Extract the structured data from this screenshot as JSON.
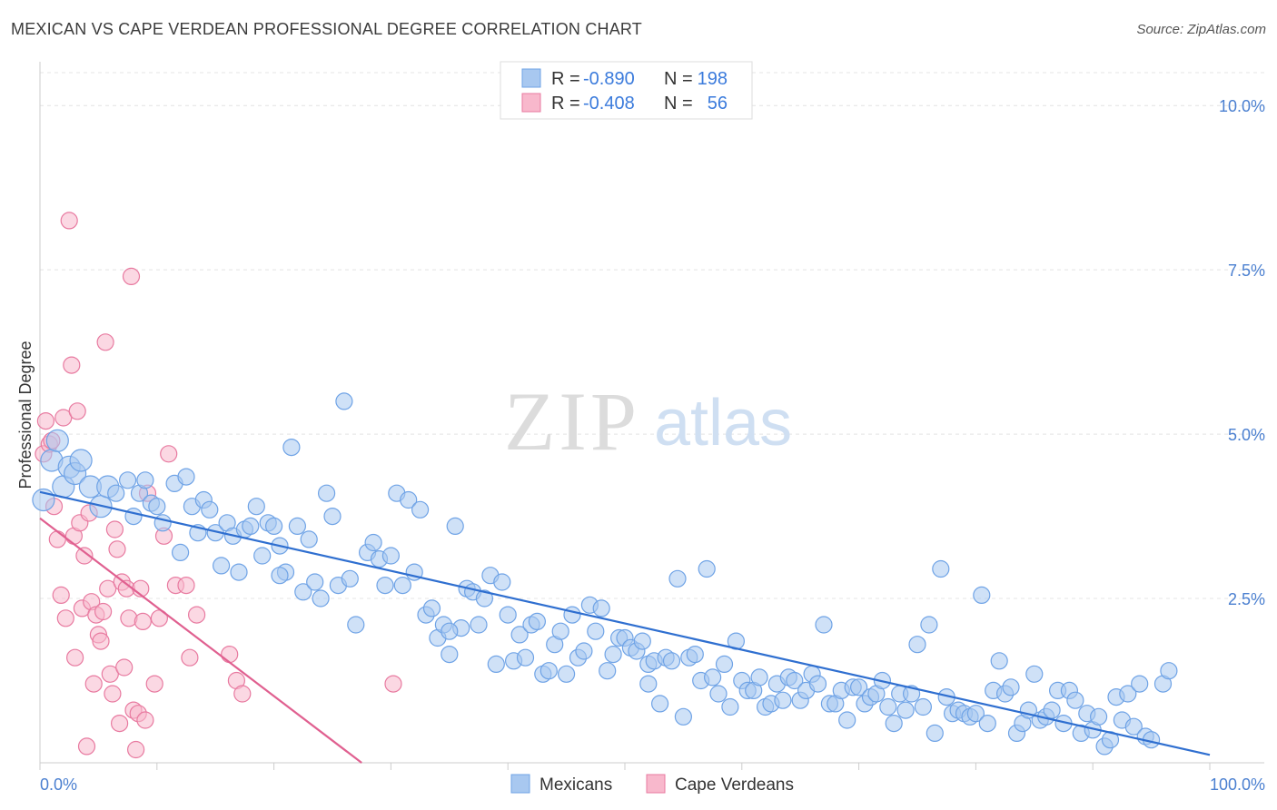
{
  "title": "MEXICAN VS CAPE VERDEAN PROFESSIONAL DEGREE CORRELATION CHART",
  "source": "Source: ZipAtlas.com",
  "watermark": {
    "zip": "ZIP",
    "atlas": "atlas"
  },
  "legend_top": [
    {
      "r_label": "R =",
      "r_value": "-0.890",
      "n_label": "N =",
      "n_value": "198",
      "color": "#a8c8f0"
    },
    {
      "r_label": "R =",
      "r_value": "-0.408",
      "n_label": "N =",
      "n_value": "56",
      "color": "#f8b8cc"
    }
  ],
  "chart_data": {
    "type": "scatter",
    "title": "MEXICAN VS CAPE VERDEAN PROFESSIONAL DEGREE CORRELATION CHART",
    "xlabel": "",
    "ylabel": "Professional Degree",
    "xlim": [
      0,
      100
    ],
    "ylim": [
      0,
      10.5
    ],
    "x_tick_labels": [
      "0.0%",
      "100.0%"
    ],
    "y_ticks": [
      2.5,
      5.0,
      7.5,
      10.0
    ],
    "y_tick_labels": [
      "2.5%",
      "5.0%",
      "7.5%",
      "10.0%"
    ],
    "grid": true,
    "legend_position": "top-center",
    "series": [
      {
        "name": "Mexicans",
        "color": "#6fa3e6",
        "fill": "#a8c8f0",
        "trend": {
          "x": [
            0,
            100
          ],
          "y": [
            4.12,
            0.12
          ]
        },
        "points": [
          [
            0.3,
            4.0
          ],
          [
            1,
            4.6
          ],
          [
            1.5,
            4.9
          ],
          [
            2,
            4.2
          ],
          [
            2.5,
            4.5
          ],
          [
            3,
            4.4
          ],
          [
            3.5,
            4.6
          ],
          [
            4.3,
            4.2
          ],
          [
            5.2,
            3.9
          ],
          [
            5.8,
            4.2
          ],
          [
            6.5,
            4.1
          ],
          [
            7.5,
            4.3
          ],
          [
            8,
            3.75
          ],
          [
            8.5,
            4.1
          ],
          [
            9,
            4.3
          ],
          [
            9.5,
            3.95
          ],
          [
            10,
            3.9
          ],
          [
            10.5,
            3.65
          ],
          [
            11.5,
            4.25
          ],
          [
            12,
            3.2
          ],
          [
            12.5,
            4.35
          ],
          [
            13,
            3.9
          ],
          [
            13.5,
            3.5
          ],
          [
            14,
            4.0
          ],
          [
            14.5,
            3.85
          ],
          [
            15,
            3.5
          ],
          [
            15.5,
            3.0
          ],
          [
            16,
            3.65
          ],
          [
            16.5,
            3.45
          ],
          [
            17,
            2.9
          ],
          [
            17.5,
            3.55
          ],
          [
            18,
            3.6
          ],
          [
            18.5,
            3.9
          ],
          [
            19,
            3.15
          ],
          [
            19.5,
            3.65
          ],
          [
            20,
            3.6
          ],
          [
            20.5,
            3.3
          ],
          [
            21,
            2.9
          ],
          [
            21.5,
            4.8
          ],
          [
            22,
            3.6
          ],
          [
            22.5,
            2.6
          ],
          [
            23,
            3.4
          ],
          [
            23.5,
            2.75
          ],
          [
            24,
            2.5
          ],
          [
            24.5,
            4.1
          ],
          [
            25,
            3.75
          ],
          [
            25.5,
            2.7
          ],
          [
            26,
            5.5
          ],
          [
            26.5,
            2.8
          ],
          [
            27,
            2.1
          ],
          [
            28,
            3.2
          ],
          [
            28.5,
            3.35
          ],
          [
            29,
            3.1
          ],
          [
            29.5,
            2.7
          ],
          [
            30,
            3.15
          ],
          [
            30.5,
            4.1
          ],
          [
            31,
            2.7
          ],
          [
            31.5,
            4.0
          ],
          [
            32,
            2.9
          ],
          [
            32.5,
            3.85
          ],
          [
            33,
            2.25
          ],
          [
            33.5,
            2.35
          ],
          [
            34,
            1.9
          ],
          [
            34.5,
            2.1
          ],
          [
            35,
            1.65
          ],
          [
            35.5,
            3.6
          ],
          [
            36,
            2.05
          ],
          [
            36.5,
            2.65
          ],
          [
            37,
            2.6
          ],
          [
            37.5,
            2.1
          ],
          [
            38,
            2.5
          ],
          [
            38.5,
            2.85
          ],
          [
            39,
            1.5
          ],
          [
            39.5,
            2.75
          ],
          [
            40,
            2.25
          ],
          [
            40.5,
            1.55
          ],
          [
            41,
            1.95
          ],
          [
            41.5,
            1.6
          ],
          [
            42,
            2.1
          ],
          [
            42.5,
            2.15
          ],
          [
            43,
            1.35
          ],
          [
            43.5,
            1.4
          ],
          [
            44,
            1.8
          ],
          [
            44.5,
            2.0
          ],
          [
            45,
            1.35
          ],
          [
            45.5,
            2.25
          ],
          [
            46,
            1.6
          ],
          [
            46.5,
            1.7
          ],
          [
            47,
            2.4
          ],
          [
            47.5,
            2.0
          ],
          [
            48,
            2.35
          ],
          [
            48.5,
            1.4
          ],
          [
            49,
            1.65
          ],
          [
            49.5,
            1.9
          ],
          [
            50,
            1.9
          ],
          [
            50.5,
            1.75
          ],
          [
            51,
            1.7
          ],
          [
            51.5,
            1.85
          ],
          [
            52,
            1.5
          ],
          [
            52.5,
            1.55
          ],
          [
            53,
            0.9
          ],
          [
            53.5,
            1.6
          ],
          [
            54,
            1.55
          ],
          [
            54.5,
            2.8
          ],
          [
            55,
            0.7
          ],
          [
            55.5,
            1.6
          ],
          [
            56,
            1.65
          ],
          [
            56.5,
            1.25
          ],
          [
            57,
            2.95
          ],
          [
            57.5,
            1.3
          ],
          [
            58,
            1.05
          ],
          [
            58.5,
            1.5
          ],
          [
            59,
            0.85
          ],
          [
            59.5,
            1.85
          ],
          [
            60,
            1.25
          ],
          [
            60.5,
            1.1
          ],
          [
            61,
            1.1
          ],
          [
            61.5,
            1.3
          ],
          [
            62,
            0.85
          ],
          [
            62.5,
            0.9
          ],
          [
            63,
            1.2
          ],
          [
            63.5,
            0.95
          ],
          [
            64,
            1.3
          ],
          [
            64.5,
            1.25
          ],
          [
            65,
            0.95
          ],
          [
            65.5,
            1.1
          ],
          [
            66,
            1.35
          ],
          [
            66.5,
            1.2
          ],
          [
            67,
            2.1
          ],
          [
            67.5,
            0.9
          ],
          [
            68,
            0.9
          ],
          [
            68.5,
            1.1
          ],
          [
            69,
            0.65
          ],
          [
            69.5,
            1.15
          ],
          [
            70,
            1.15
          ],
          [
            70.5,
            0.9
          ],
          [
            71,
            1.0
          ],
          [
            71.5,
            1.05
          ],
          [
            72,
            1.25
          ],
          [
            72.5,
            0.85
          ],
          [
            73,
            0.6
          ],
          [
            73.5,
            1.05
          ],
          [
            74,
            0.8
          ],
          [
            74.5,
            1.05
          ],
          [
            75,
            1.8
          ],
          [
            75.5,
            0.85
          ],
          [
            76,
            2.1
          ],
          [
            76.5,
            0.45
          ],
          [
            77,
            2.95
          ],
          [
            77.5,
            1.0
          ],
          [
            78,
            0.75
          ],
          [
            78.5,
            0.8
          ],
          [
            79,
            0.75
          ],
          [
            79.5,
            0.7
          ],
          [
            80,
            0.75
          ],
          [
            80.5,
            2.55
          ],
          [
            81,
            0.6
          ],
          [
            81.5,
            1.1
          ],
          [
            82,
            1.55
          ],
          [
            82.5,
            1.05
          ],
          [
            83,
            1.15
          ],
          [
            83.5,
            0.45
          ],
          [
            84,
            0.6
          ],
          [
            84.5,
            0.8
          ],
          [
            85,
            1.35
          ],
          [
            85.5,
            0.65
          ],
          [
            86,
            0.7
          ],
          [
            86.5,
            0.8
          ],
          [
            87,
            1.1
          ],
          [
            87.5,
            0.6
          ],
          [
            88,
            1.1
          ],
          [
            88.5,
            0.95
          ],
          [
            89,
            0.45
          ],
          [
            89.5,
            0.75
          ],
          [
            90,
            0.5
          ],
          [
            90.5,
            0.7
          ],
          [
            91,
            0.25
          ],
          [
            91.5,
            0.35
          ],
          [
            92,
            1.0
          ],
          [
            92.5,
            0.65
          ],
          [
            93,
            1.05
          ],
          [
            93.5,
            0.55
          ],
          [
            94,
            1.2
          ],
          [
            94.5,
            0.4
          ],
          [
            95,
            0.35
          ],
          [
            96,
            1.2
          ],
          [
            96.5,
            1.4
          ],
          [
            20.5,
            2.85
          ],
          [
            35,
            2.0
          ],
          [
            52,
            1.2
          ]
        ]
      },
      {
        "name": "Cape Verdeans",
        "color": "#e87aa0",
        "fill": "#f8b8cc",
        "trend": {
          "x": [
            0,
            27.5
          ],
          "y": [
            3.72,
            0.0
          ]
        },
        "points": [
          [
            0.3,
            4.7
          ],
          [
            0.5,
            5.2
          ],
          [
            0.8,
            4.85
          ],
          [
            1,
            4.9
          ],
          [
            1.2,
            3.9
          ],
          [
            1.5,
            3.4
          ],
          [
            1.8,
            2.55
          ],
          [
            2,
            5.25
          ],
          [
            2.2,
            2.2
          ],
          [
            2.5,
            8.25
          ],
          [
            2.7,
            6.05
          ],
          [
            2.9,
            3.45
          ],
          [
            3,
            1.6
          ],
          [
            3.2,
            5.35
          ],
          [
            3.4,
            3.65
          ],
          [
            3.6,
            2.35
          ],
          [
            3.8,
            3.15
          ],
          [
            4,
            0.25
          ],
          [
            4.2,
            3.8
          ],
          [
            4.4,
            2.45
          ],
          [
            4.6,
            1.2
          ],
          [
            4.8,
            2.25
          ],
          [
            5,
            1.95
          ],
          [
            5.2,
            1.85
          ],
          [
            5.4,
            2.3
          ],
          [
            5.6,
            6.4
          ],
          [
            5.8,
            2.65
          ],
          [
            6,
            1.35
          ],
          [
            6.2,
            1.05
          ],
          [
            6.4,
            3.55
          ],
          [
            6.6,
            3.25
          ],
          [
            6.8,
            0.6
          ],
          [
            7,
            2.75
          ],
          [
            7.2,
            1.45
          ],
          [
            7.4,
            2.65
          ],
          [
            7.6,
            2.2
          ],
          [
            7.8,
            7.4
          ],
          [
            8,
            0.8
          ],
          [
            8.2,
            0.2
          ],
          [
            8.4,
            0.75
          ],
          [
            8.6,
            2.65
          ],
          [
            8.8,
            2.15
          ],
          [
            9,
            0.65
          ],
          [
            9.2,
            4.1
          ],
          [
            9.8,
            1.2
          ],
          [
            10.2,
            2.2
          ],
          [
            10.6,
            3.45
          ],
          [
            11,
            4.7
          ],
          [
            11.6,
            2.7
          ],
          [
            12.5,
            2.7
          ],
          [
            12.8,
            1.6
          ],
          [
            13.4,
            2.25
          ],
          [
            16.2,
            1.65
          ],
          [
            16.8,
            1.25
          ],
          [
            17.3,
            1.05
          ],
          [
            30.2,
            1.2
          ]
        ]
      }
    ]
  },
  "bottom_legend": [
    {
      "label": "Mexicans",
      "color": "#a8c8f0"
    },
    {
      "label": "Cape Verdeans",
      "color": "#f8b8cc"
    }
  ]
}
